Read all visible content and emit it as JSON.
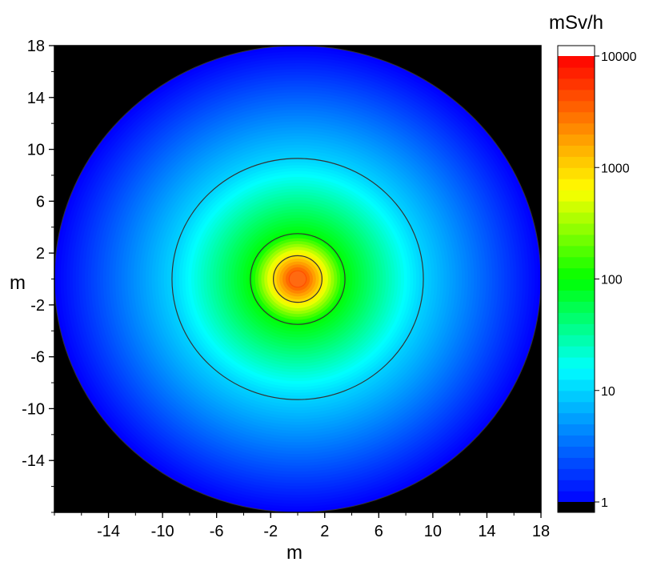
{
  "chart_data": {
    "type": "heatmap",
    "title": "",
    "xlabel": "m",
    "ylabel": "m",
    "xlim": [
      -18,
      18
    ],
    "ylim": [
      -18,
      18
    ],
    "x_ticks": [
      "-14",
      "-10",
      "-6",
      "-2",
      "2",
      "6",
      "10",
      "14",
      "18"
    ],
    "y_ticks": [
      "18",
      "14",
      "10",
      "6",
      "2",
      "-2",
      "-6",
      "-10",
      "-14"
    ],
    "colorbar": {
      "title": "mSv/h",
      "scale": "log",
      "range": [
        1,
        10000
      ],
      "tick_labels": [
        "10000",
        "1000",
        "100",
        "10",
        "1"
      ],
      "tick_values": [
        10000,
        1000,
        100,
        10,
        1
      ],
      "colors": [
        "#000000",
        "#0000ff",
        "#00aaff",
        "#00ffff",
        "#00ff00",
        "#ffff00",
        "#ff8000",
        "#ff0000",
        "#ffffff"
      ]
    },
    "field": {
      "shape": "circular",
      "domain_radius_m": 18,
      "center": [
        0,
        0
      ],
      "outside_color": "#000000",
      "contour_radii_m": [
        1.8,
        3.5,
        9.3
      ],
      "dose_rate_vs_radius": [
        {
          "r": 0,
          "value": 10000
        },
        {
          "r": 1.8,
          "value": 1000
        },
        {
          "r": 3.5,
          "value": 100
        },
        {
          "r": 9.3,
          "value": 10
        },
        {
          "r": 18,
          "value": 1
        }
      ]
    }
  }
}
